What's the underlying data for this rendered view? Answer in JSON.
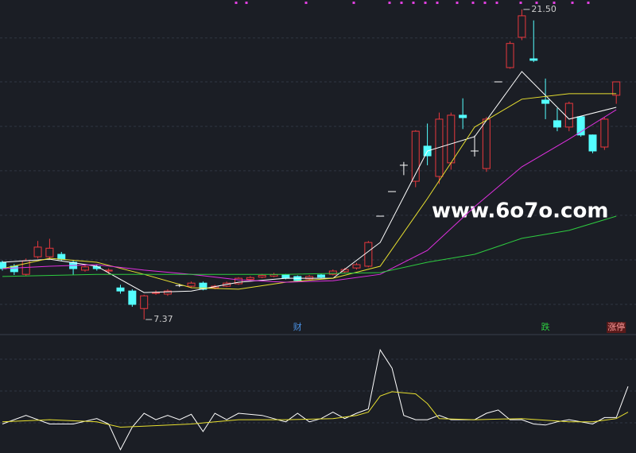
{
  "chart_data": [
    {
      "type": "candlestick",
      "ylim": [
        6.72,
        21.93
      ],
      "gridlines": [
        20.2,
        18.2,
        16.17,
        14.15,
        12.12,
        10.09,
        8.06
      ],
      "up_color": "#e8383d",
      "down_color": "#54ffff",
      "flat_color": "#ffffff",
      "candles": {
        "open": [
          9.98,
          9.8,
          9.43,
          10.23,
          10.23,
          10.34,
          9.98,
          9.62,
          9.78,
          9.58,
          8.81,
          8.67,
          7.87,
          8.57,
          8.53,
          8.92,
          8.89,
          9.03,
          8.82,
          8.89,
          9.0,
          9.2,
          9.3,
          9.35,
          9.4,
          9.33,
          9.22,
          9.4,
          9.43,
          9.55,
          9.72,
          9.8,
          12.08,
          13.2,
          14.4,
          13.67,
          15.27,
          13.89,
          14.51,
          16.68,
          15.05,
          14.25,
          18.2,
          18.85,
          20.23,
          19.25,
          17.37,
          16.43,
          16.14,
          16.61,
          15.78,
          15.23,
          17.59
        ],
        "high": [
          10.05,
          9.9,
          10.15,
          10.95,
          11.05,
          10.45,
          10.05,
          9.85,
          9.88,
          9.7,
          8.95,
          8.75,
          8.5,
          8.7,
          8.75,
          9.0,
          9.1,
          9.1,
          8.95,
          9.1,
          9.3,
          9.35,
          9.45,
          9.5,
          9.45,
          9.38,
          9.4,
          9.45,
          9.65,
          9.72,
          9.95,
          10.95,
          12.08,
          13.2,
          14.55,
          16.0,
          16.3,
          16.8,
          16.8,
          17.45,
          15.75,
          16.6,
          18.2,
          20.05,
          21.5,
          21.0,
          18.35,
          17.0,
          17.3,
          16.65,
          15.8,
          16.6,
          18.2
        ],
        "low": [
          9.6,
          9.4,
          9.35,
          10.15,
          10.1,
          10.05,
          9.4,
          9.55,
          9.6,
          9.45,
          8.55,
          7.95,
          7.37,
          8.5,
          8.45,
          8.85,
          8.8,
          8.7,
          8.75,
          8.85,
          8.95,
          9.15,
          9.25,
          9.3,
          9.2,
          9.1,
          9.18,
          9.25,
          9.38,
          9.5,
          9.65,
          9.75,
          12.08,
          13.2,
          13.95,
          13.4,
          14.4,
          13.55,
          14.2,
          16.05,
          14.8,
          14.1,
          18.2,
          18.8,
          20.1,
          19.1,
          16.5,
          15.95,
          15.95,
          15.7,
          14.95,
          15.1,
          17.2
        ],
        "close": [
          9.69,
          9.55,
          10.05,
          10.67,
          10.62,
          10.12,
          9.69,
          9.77,
          9.69,
          9.62,
          8.67,
          8.06,
          8.45,
          8.6,
          8.67,
          8.92,
          9.03,
          8.75,
          8.89,
          9.03,
          9.25,
          9.28,
          9.38,
          9.42,
          9.25,
          9.15,
          9.33,
          9.3,
          9.58,
          9.65,
          9.87,
          10.88,
          12.08,
          13.2,
          14.4,
          15.95,
          14.83,
          16.5,
          16.68,
          16.57,
          15.05,
          16.5,
          18.2,
          19.95,
          21.21,
          19.18,
          17.22,
          16.14,
          17.22,
          15.78,
          15.05,
          16.5,
          18.2
        ]
      },
      "series": [
        {
          "color": "#ffffff",
          "x": [
            0,
            4,
            8,
            12,
            16,
            20,
            24,
            28,
            32,
            36,
            40,
            44,
            48,
            52
          ],
          "values": [
            9.98,
            10.12,
            9.8,
            8.6,
            8.67,
            9.07,
            9.25,
            9.25,
            10.88,
            15.05,
            15.7,
            18.67,
            16.5,
            17.04
          ]
        },
        {
          "color": "#e8e030",
          "x": [
            0,
            4,
            8,
            12,
            16,
            20,
            24,
            28,
            32,
            36,
            40,
            44,
            48,
            52
          ],
          "values": [
            9.69,
            10.16,
            9.98,
            9.43,
            8.82,
            8.75,
            9.07,
            9.25,
            9.8,
            12.88,
            16.14,
            17.41,
            17.66,
            17.66
          ]
        },
        {
          "color": "#e030e0",
          "x": [
            0,
            4,
            8,
            12,
            16,
            20,
            24,
            28,
            32,
            36,
            40,
            44,
            48,
            52
          ],
          "values": [
            9.69,
            9.8,
            9.87,
            9.62,
            9.43,
            9.18,
            9.07,
            9.14,
            9.43,
            10.52,
            12.51,
            14.33,
            15.59,
            16.93
          ]
        },
        {
          "color": "#2ecc40",
          "x": [
            0,
            8,
            16,
            24,
            32,
            36,
            40,
            44,
            48,
            52
          ],
          "values": [
            9.33,
            9.43,
            9.43,
            9.43,
            9.51,
            9.98,
            10.34,
            11.07,
            11.43,
            12.08
          ]
        }
      ],
      "annotations": [
        {
          "index": 44,
          "value": 21.5,
          "label": "21.50"
        },
        {
          "index": 12,
          "value": 7.37,
          "label": "7.37"
        }
      ],
      "events": [
        {
          "index": 25,
          "label": "财",
          "color": "#4a90e2"
        },
        {
          "index": 46,
          "label": "跌",
          "color": "#2ecc40"
        },
        {
          "index": 52,
          "label": "涨停",
          "color": "#ff9a9a"
        }
      ],
      "watermark": "www.6o7o.com"
    },
    {
      "type": "line",
      "ylim": [
        -5,
        100
      ],
      "series": [
        {
          "color": "#ffffff",
          "x": [
            0,
            2,
            4,
            6,
            8,
            9,
            10,
            11,
            12,
            13,
            14,
            15,
            16,
            17,
            18,
            19,
            20,
            22,
            24,
            25,
            26,
            27,
            28,
            29,
            30,
            31,
            32,
            33,
            34,
            35,
            36,
            37,
            38,
            40,
            41,
            42,
            43,
            44,
            45,
            46,
            47,
            48,
            49,
            50,
            51,
            52,
            53
          ],
          "values": [
            22,
            30,
            22,
            22,
            27,
            22,
            -2,
            19,
            32,
            26,
            30,
            26,
            31,
            15,
            32,
            26,
            32,
            30,
            24,
            32,
            24,
            27,
            33,
            27,
            32,
            36,
            91,
            74,
            30,
            26,
            26,
            30,
            26,
            26,
            32,
            35,
            26,
            26,
            22,
            21,
            24,
            26,
            24,
            22,
            28,
            28,
            57
          ]
        },
        {
          "color": "#e8e030",
          "x": [
            0,
            4,
            8,
            10,
            12,
            16,
            20,
            24,
            28,
            30,
            31,
            32,
            33,
            35,
            36,
            37,
            40,
            44,
            48,
            50,
            52,
            53
          ],
          "values": [
            24,
            26,
            24,
            19,
            20,
            22,
            26,
            26,
            27,
            30,
            33,
            48,
            52,
            50,
            41,
            27,
            26,
            27,
            24,
            24,
            27,
            33
          ]
        }
      ]
    }
  ]
}
